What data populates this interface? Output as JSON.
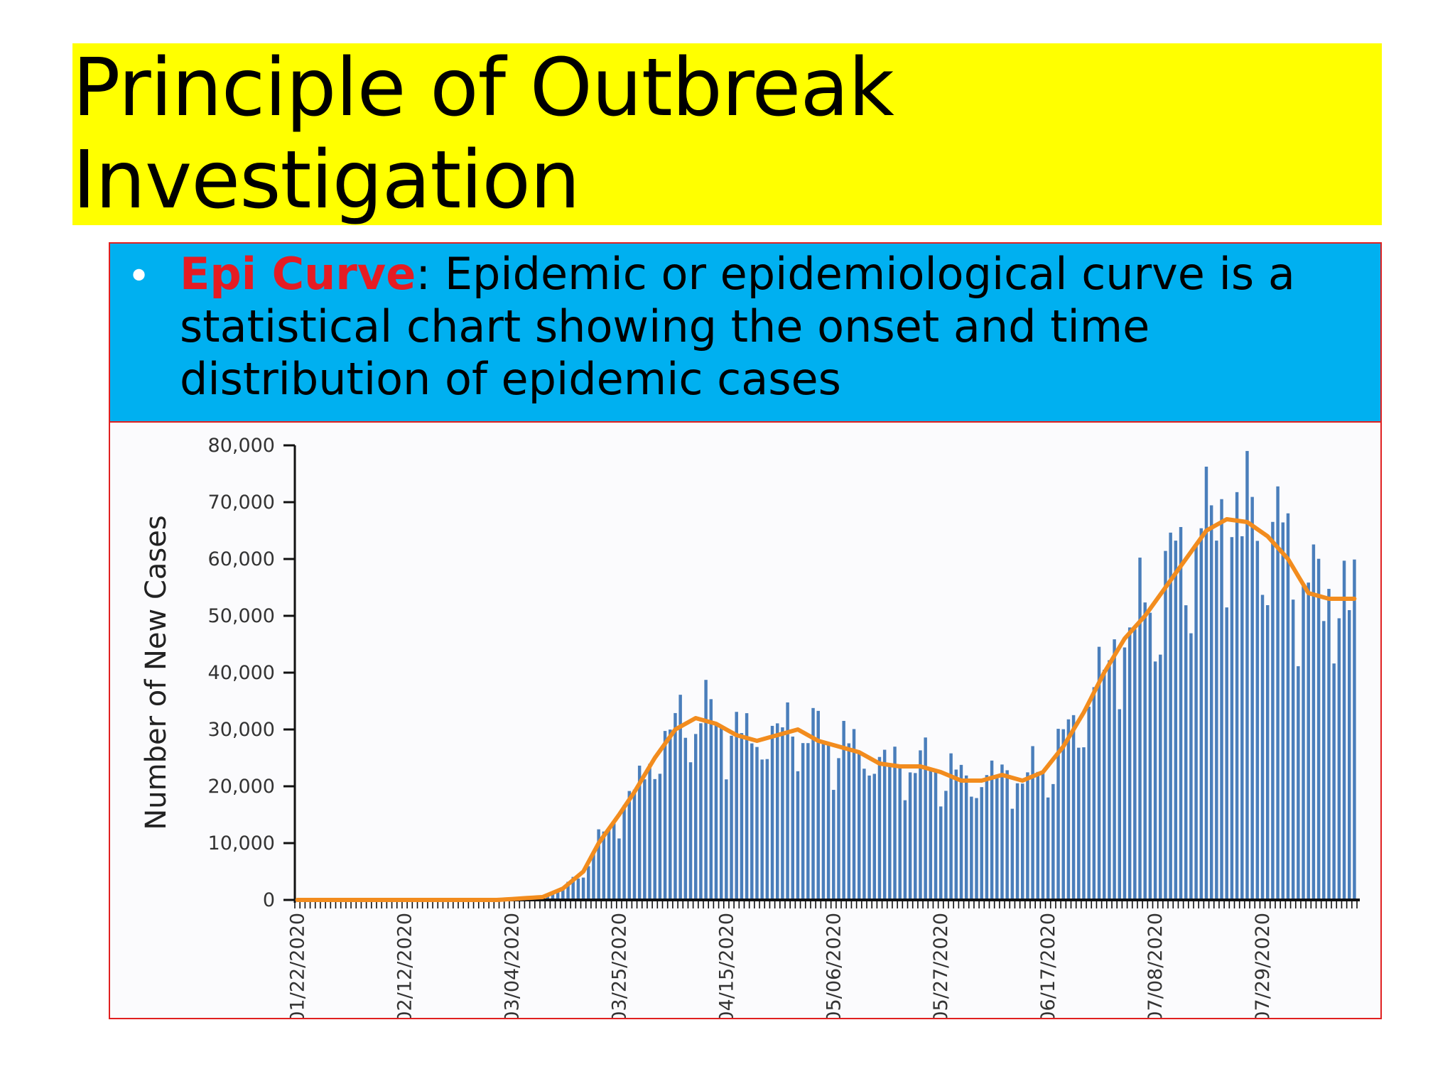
{
  "slide": {
    "title": "Principle of Outbreak Investigation",
    "bullet": {
      "term": "Epi Curve",
      "text": ": Epidemic or epidemiological curve is a statistical chart showing the onset and time distribution of epidemic cases"
    },
    "colors": {
      "title_bg": "#ffff00",
      "bullet_bg": "#00b0f0",
      "term": "#e51c23",
      "bar": "#4a7ebb",
      "curve": "#f28c1e"
    }
  },
  "chart_data": {
    "type": "bar",
    "ylabel": "Number of New Cases",
    "ylim": [
      0,
      80000
    ],
    "yticks": [
      0,
      10000,
      20000,
      30000,
      40000,
      50000,
      60000,
      70000,
      80000
    ],
    "ytick_labels": [
      "0",
      "10,000",
      "20,000",
      "30,000",
      "40,000",
      "50,000",
      "60,000",
      "70,000",
      "80,000"
    ],
    "x_tick_labels": [
      "01/22/2020",
      "02/12/2020",
      "03/04/2020",
      "03/25/2020",
      "04/15/2020",
      "05/06/2020",
      "05/27/2020",
      "06/17/2020",
      "07/08/2020",
      "07/29/2020"
    ],
    "x_start": "01/22/2020",
    "x_end": "08/16/2020",
    "anchors_daily": [
      [
        "01/22/2020",
        0
      ],
      [
        "03/01/2020",
        0
      ],
      [
        "03/10/2020",
        500
      ],
      [
        "03/14/2020",
        2000
      ],
      [
        "03/18/2020",
        5000
      ],
      [
        "03/21/2020",
        10000
      ],
      [
        "03/25/2020",
        15000
      ],
      [
        "03/28/2020",
        19000
      ],
      [
        "04/01/2020",
        25000
      ],
      [
        "04/05/2020",
        30000
      ],
      [
        "04/09/2020",
        32000
      ],
      [
        "04/13/2020",
        31000
      ],
      [
        "04/17/2020",
        29000
      ],
      [
        "04/21/2020",
        28000
      ],
      [
        "04/25/2020",
        29000
      ],
      [
        "04/29/2020",
        30000
      ],
      [
        "05/03/2020",
        28000
      ],
      [
        "05/07/2020",
        27000
      ],
      [
        "05/11/2020",
        26000
      ],
      [
        "05/15/2020",
        24000
      ],
      [
        "05/19/2020",
        23500
      ],
      [
        "05/23/2020",
        23500
      ],
      [
        "05/27/2020",
        22500
      ],
      [
        "05/31/2020",
        21000
      ],
      [
        "06/04/2020",
        21000
      ],
      [
        "06/08/2020",
        22000
      ],
      [
        "06/12/2020",
        21000
      ],
      [
        "06/16/2020",
        22500
      ],
      [
        "06/20/2020",
        27000
      ],
      [
        "06/24/2020",
        33000
      ],
      [
        "06/28/2020",
        40000
      ],
      [
        "07/02/2020",
        46000
      ],
      [
        "07/06/2020",
        50000
      ],
      [
        "07/10/2020",
        55000
      ],
      [
        "07/14/2020",
        60000
      ],
      [
        "07/18/2020",
        65000
      ],
      [
        "07/22/2020",
        67000
      ],
      [
        "07/26/2020",
        66500
      ],
      [
        "07/30/2020",
        64000
      ],
      [
        "08/03/2020",
        60000
      ],
      [
        "08/07/2020",
        54000
      ],
      [
        "08/11/2020",
        53000
      ],
      [
        "08/16/2020",
        53000
      ]
    ],
    "series": [
      {
        "name": "",
        "kind": "bars",
        "color": "#4a7ebb"
      },
      {
        "name": "",
        "kind": "line",
        "color": "#f28c1e"
      }
    ],
    "grid": false,
    "legend": "none"
  }
}
